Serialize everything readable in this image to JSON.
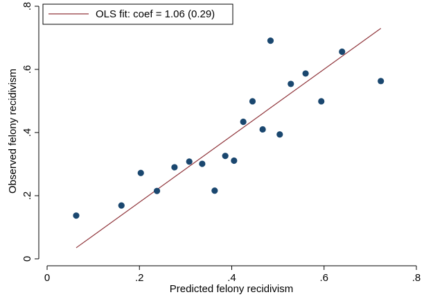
{
  "chart_data": {
    "type": "scatter",
    "xlabel": "Predicted felony recidivism",
    "ylabel": "Observed felony recidivism",
    "xlim": [
      0,
      0.8
    ],
    "ylim": [
      0,
      0.8
    ],
    "xticks": [
      0,
      0.2,
      0.4,
      0.6,
      0.8
    ],
    "xtick_labels": [
      "0",
      ".2",
      ".4",
      ".6",
      ".8"
    ],
    "yticks": [
      0,
      0.2,
      0.4,
      0.6,
      0.8
    ],
    "ytick_labels": [
      "0",
      ".2",
      ".4",
      ".6",
      ".8"
    ],
    "grid": false,
    "legend_position": "top-left",
    "points": [
      {
        "x": 0.063,
        "y": 0.137
      },
      {
        "x": 0.161,
        "y": 0.169
      },
      {
        "x": 0.203,
        "y": 0.272
      },
      {
        "x": 0.238,
        "y": 0.215
      },
      {
        "x": 0.276,
        "y": 0.29
      },
      {
        "x": 0.308,
        "y": 0.308
      },
      {
        "x": 0.336,
        "y": 0.301
      },
      {
        "x": 0.363,
        "y": 0.216
      },
      {
        "x": 0.386,
        "y": 0.326
      },
      {
        "x": 0.405,
        "y": 0.311
      },
      {
        "x": 0.425,
        "y": 0.434
      },
      {
        "x": 0.445,
        "y": 0.499
      },
      {
        "x": 0.467,
        "y": 0.41
      },
      {
        "x": 0.484,
        "y": 0.691
      },
      {
        "x": 0.504,
        "y": 0.394
      },
      {
        "x": 0.528,
        "y": 0.554
      },
      {
        "x": 0.56,
        "y": 0.587
      },
      {
        "x": 0.594,
        "y": 0.499
      },
      {
        "x": 0.639,
        "y": 0.656
      },
      {
        "x": 0.723,
        "y": 0.563
      }
    ],
    "fit_line": {
      "label": "OLS fit: coef = 1.06 (0.29)",
      "x": [
        0.063,
        0.723
      ],
      "y": [
        0.035,
        0.73
      ]
    },
    "colors": {
      "points": "#1a476f",
      "fit_line": "#90353b",
      "frame": "#000000"
    }
  }
}
